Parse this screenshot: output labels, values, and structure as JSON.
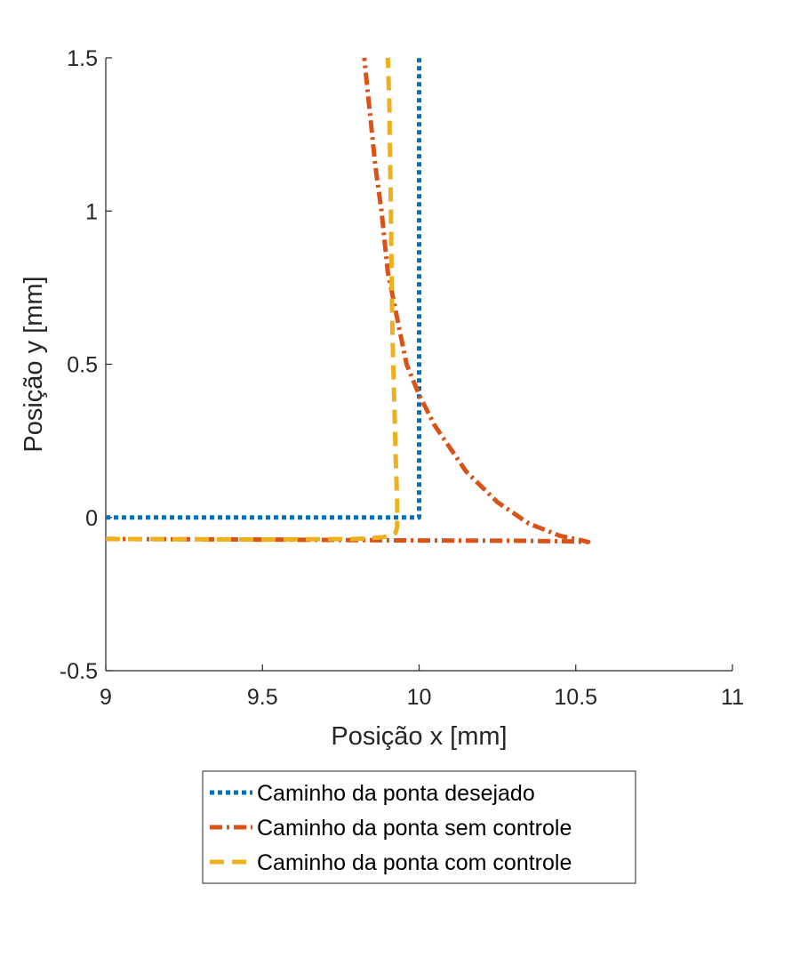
{
  "chart_data": {
    "type": "line",
    "title": "",
    "xlabel": "Posição x [mm]",
    "ylabel": "Posição y [mm]",
    "xlim": [
      9,
      11
    ],
    "ylim": [
      -0.5,
      1.5
    ],
    "xticks": [
      9,
      9.5,
      10,
      10.5,
      11
    ],
    "xtick_labels": [
      "9",
      "9.5",
      "10",
      "10.5",
      "11"
    ],
    "yticks": [
      -0.5,
      0,
      0.5,
      1,
      1.5
    ],
    "ytick_labels": [
      "-0.5",
      "0",
      "0.5",
      "1",
      "1.5"
    ],
    "grid": false,
    "legend_position": "bottom-outside",
    "series": [
      {
        "name": "Caminho da ponta desejado",
        "color": "#0072BD",
        "style": "dotted",
        "points": [
          [
            9.0,
            0.0
          ],
          [
            10.0,
            0.0
          ],
          [
            10.0,
            1.5
          ]
        ]
      },
      {
        "name": "Caminho da ponta sem controle",
        "color": "#D95319",
        "style": "dashdot",
        "points": [
          [
            9.0,
            -0.07
          ],
          [
            9.5,
            -0.072
          ],
          [
            10.0,
            -0.075
          ],
          [
            10.3,
            -0.076
          ],
          [
            10.48,
            -0.078
          ],
          [
            10.54,
            -0.08
          ],
          [
            10.52,
            -0.075
          ],
          [
            10.45,
            -0.06
          ],
          [
            10.35,
            -0.02
          ],
          [
            10.25,
            0.05
          ],
          [
            10.15,
            0.15
          ],
          [
            10.05,
            0.3
          ],
          [
            10.0,
            0.4
          ],
          [
            9.96,
            0.5
          ],
          [
            9.93,
            0.65
          ],
          [
            9.9,
            0.8
          ],
          [
            9.88,
            1.0
          ],
          [
            9.86,
            1.15
          ],
          [
            9.845,
            1.3
          ],
          [
            9.835,
            1.4
          ],
          [
            9.825,
            1.5
          ]
        ]
      },
      {
        "name": "Caminho da ponta com controle",
        "color": "#EDB120",
        "style": "dashed",
        "points": [
          [
            9.0,
            -0.07
          ],
          [
            9.5,
            -0.072
          ],
          [
            9.8,
            -0.07
          ],
          [
            9.88,
            -0.065
          ],
          [
            9.91,
            -0.06
          ],
          [
            9.925,
            -0.05
          ],
          [
            9.93,
            -0.03
          ],
          [
            9.93,
            0.0
          ],
          [
            9.93,
            0.05
          ],
          [
            9.925,
            0.2
          ],
          [
            9.92,
            0.4
          ],
          [
            9.915,
            0.6
          ],
          [
            9.912,
            0.8
          ],
          [
            9.91,
            1.0
          ],
          [
            9.907,
            1.2
          ],
          [
            9.905,
            1.35
          ],
          [
            9.9,
            1.5
          ]
        ]
      }
    ]
  }
}
